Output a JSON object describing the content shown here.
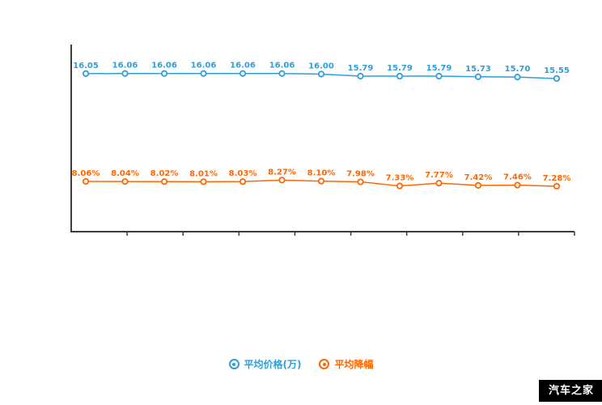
{
  "chart_data": {
    "type": "line",
    "title": "",
    "xlabel": "",
    "ylabel": "",
    "grid": false,
    "legend_position": "bottom",
    "categories": [
      "",
      "",
      "",
      "",
      "",
      "",
      "",
      "",
      "",
      "",
      "",
      "",
      ""
    ],
    "series": [
      {
        "name": "平均价格(万)",
        "color": "#2e9fd9",
        "axis_range": [
          0,
          19
        ],
        "values": [
          16.05,
          16.06,
          16.06,
          16.06,
          16.06,
          16.06,
          16.0,
          15.79,
          15.79,
          15.79,
          15.73,
          15.7,
          15.55
        ],
        "labels": [
          "16.05",
          "16.06",
          "16.06",
          "16.06",
          "16.06",
          "16.06",
          "16.00",
          "15.79",
          "15.79",
          "15.79",
          "15.73",
          "15.70",
          "15.55"
        ]
      },
      {
        "name": "平均降幅",
        "color": "#ff6600",
        "axis_range": [
          0,
          30
        ],
        "values": [
          8.06,
          8.04,
          8.02,
          8.01,
          8.03,
          8.27,
          8.1,
          7.98,
          7.33,
          7.77,
          7.42,
          7.46,
          7.28
        ],
        "labels": [
          "8.06%",
          "8.04%",
          "8.02%",
          "8.01%",
          "8.03%",
          "8.27%",
          "8.10%",
          "7.98%",
          "7.33%",
          "7.77%",
          "7.42%",
          "7.46%",
          "7.28%"
        ]
      }
    ]
  },
  "legend": {
    "items": [
      {
        "label": "平均价格(万)"
      },
      {
        "label": "平均降幅"
      }
    ]
  },
  "watermark": {
    "text": "汽车之家"
  }
}
